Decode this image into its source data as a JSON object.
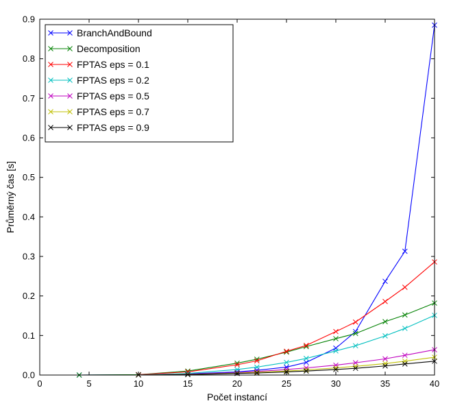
{
  "chart_data": {
    "type": "line",
    "title": "",
    "xlabel": "Počet instancí",
    "ylabel": "Průměrný čas [s]",
    "xlim": [
      0,
      40
    ],
    "ylim": [
      0,
      0.9
    ],
    "xticks": [
      "0",
      "5",
      "10",
      "15",
      "20",
      "25",
      "30",
      "35",
      "40"
    ],
    "yticks": [
      "0.0",
      "0.1",
      "0.2",
      "0.3",
      "0.4",
      "0.5",
      "0.6",
      "0.7",
      "0.8",
      "0.9"
    ],
    "grid": false,
    "legend_position": "top-left",
    "marker": "x",
    "series": [
      {
        "name": "BranchAndBound",
        "color": "#0000ff",
        "x": [
          4,
          10,
          15,
          20,
          22,
          25,
          27,
          30,
          32,
          35,
          37,
          40
        ],
        "y": [
          0.0,
          0.0005,
          0.003,
          0.008,
          0.012,
          0.02,
          0.032,
          0.068,
          0.11,
          0.237,
          0.313,
          0.885
        ]
      },
      {
        "name": "Decomposition",
        "color": "#008000",
        "x": [
          4,
          10,
          15,
          20,
          22,
          25,
          27,
          30,
          32,
          35,
          37,
          40
        ],
        "y": [
          0.0,
          0.001,
          0.01,
          0.03,
          0.04,
          0.058,
          0.072,
          0.092,
          0.105,
          0.135,
          0.152,
          0.182
        ]
      },
      {
        "name": "FPTAS eps = 0.1",
        "color": "#ff0000",
        "x": [
          10,
          15,
          20,
          22,
          25,
          27,
          30,
          32,
          35,
          37,
          40
        ],
        "y": [
          0.001,
          0.008,
          0.026,
          0.036,
          0.06,
          0.075,
          0.11,
          0.134,
          0.186,
          0.222,
          0.286
        ]
      },
      {
        "name": "FPTAS eps = 0.2",
        "color": "#00bfbf",
        "x": [
          10,
          15,
          20,
          22,
          25,
          27,
          30,
          32,
          35,
          37,
          40
        ],
        "y": [
          0.0005,
          0.004,
          0.014,
          0.02,
          0.032,
          0.042,
          0.061,
          0.074,
          0.099,
          0.118,
          0.151
        ]
      },
      {
        "name": "FPTAS eps = 0.5",
        "color": "#bf00bf",
        "x": [
          10,
          15,
          20,
          22,
          25,
          27,
          30,
          32,
          35,
          37,
          40
        ],
        "y": [
          0.0003,
          0.002,
          0.006,
          0.009,
          0.014,
          0.018,
          0.025,
          0.031,
          0.041,
          0.05,
          0.064
        ]
      },
      {
        "name": "FPTAS eps = 0.7",
        "color": "#bfbf00",
        "x": [
          10,
          15,
          20,
          22,
          25,
          27,
          30,
          32,
          35,
          37,
          40
        ],
        "y": [
          0.0002,
          0.0015,
          0.005,
          0.007,
          0.01,
          0.013,
          0.018,
          0.022,
          0.029,
          0.035,
          0.045
        ]
      },
      {
        "name": "FPTAS eps = 0.9",
        "color": "#000000",
        "x": [
          10,
          15,
          20,
          22,
          25,
          27,
          30,
          32,
          35,
          37,
          40
        ],
        "y": [
          0.0001,
          0.001,
          0.004,
          0.005,
          0.008,
          0.01,
          0.014,
          0.017,
          0.023,
          0.028,
          0.035
        ]
      }
    ]
  }
}
